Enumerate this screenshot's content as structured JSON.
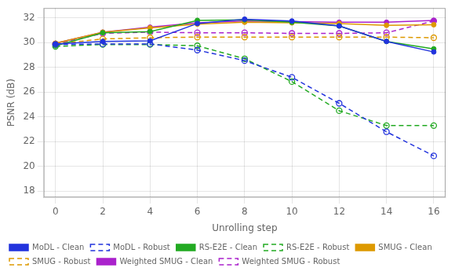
{
  "chart_data": {
    "type": "line",
    "x": [
      0,
      2,
      4,
      6,
      8,
      10,
      12,
      14,
      16
    ],
    "series": [
      {
        "name": "MoDL - Clean",
        "color": "#2233dd",
        "line_style": "solid",
        "marker": "filled_circle",
        "values": [
          29.9,
          30.1,
          30.15,
          31.55,
          31.9,
          31.75,
          31.35,
          30.1,
          29.25
        ]
      },
      {
        "name": "MoDL - Robust",
        "color": "#2233dd",
        "line_style": "dashed",
        "marker": "hollow_circle",
        "values": [
          29.85,
          29.9,
          29.9,
          29.4,
          28.55,
          27.2,
          25.1,
          22.8,
          20.85
        ]
      },
      {
        "name": "RS-E2E - Clean",
        "color": "#22aa22",
        "line_style": "solid",
        "marker": "filled_circle",
        "values": [
          29.75,
          30.8,
          30.9,
          31.8,
          31.85,
          31.65,
          31.35,
          30.1,
          29.5
        ]
      },
      {
        "name": "RS-E2E - Robust",
        "color": "#22aa22",
        "line_style": "dashed",
        "marker": "hollow_circle",
        "values": [
          29.7,
          29.85,
          29.85,
          29.75,
          28.7,
          26.85,
          24.5,
          23.3,
          23.3
        ]
      },
      {
        "name": "SMUG - Clean",
        "color": "#dd9900",
        "line_style": "solid",
        "marker": "filled_circle",
        "values": [
          29.95,
          30.85,
          31.2,
          31.5,
          31.65,
          31.6,
          31.55,
          31.4,
          31.45
        ]
      },
      {
        "name": "SMUG - Robust",
        "color": "#dd9900",
        "line_style": "dashed",
        "marker": "hollow_circle",
        "values": [
          29.9,
          30.3,
          30.4,
          30.45,
          30.45,
          30.45,
          30.45,
          30.45,
          30.4
        ]
      },
      {
        "name": "Weighted SMUG - Clean",
        "color": "#aa22cc",
        "line_style": "solid",
        "marker": "filled_circle",
        "values": [
          29.95,
          30.85,
          31.25,
          31.6,
          31.75,
          31.7,
          31.65,
          31.65,
          31.8
        ]
      },
      {
        "name": "Weighted SMUG - Robust",
        "color": "#aa22cc",
        "line_style": "dashed",
        "marker": "hollow_circle",
        "values": [
          29.9,
          30.75,
          30.85,
          30.8,
          30.8,
          30.75,
          30.75,
          30.8,
          31.75
        ]
      }
    ],
    "xlabel": "Unrolling step",
    "ylabel": "PSNR (dB)",
    "xlim": [
      -0.5,
      16.5
    ],
    "xticks": [
      0,
      2,
      4,
      6,
      8,
      10,
      12,
      14,
      16
    ],
    "ylim": [
      17.5,
      32.8
    ],
    "yticks": [
      18,
      20,
      22,
      24,
      26,
      28,
      30,
      32
    ],
    "grid": true,
    "legend": "lower left"
  }
}
